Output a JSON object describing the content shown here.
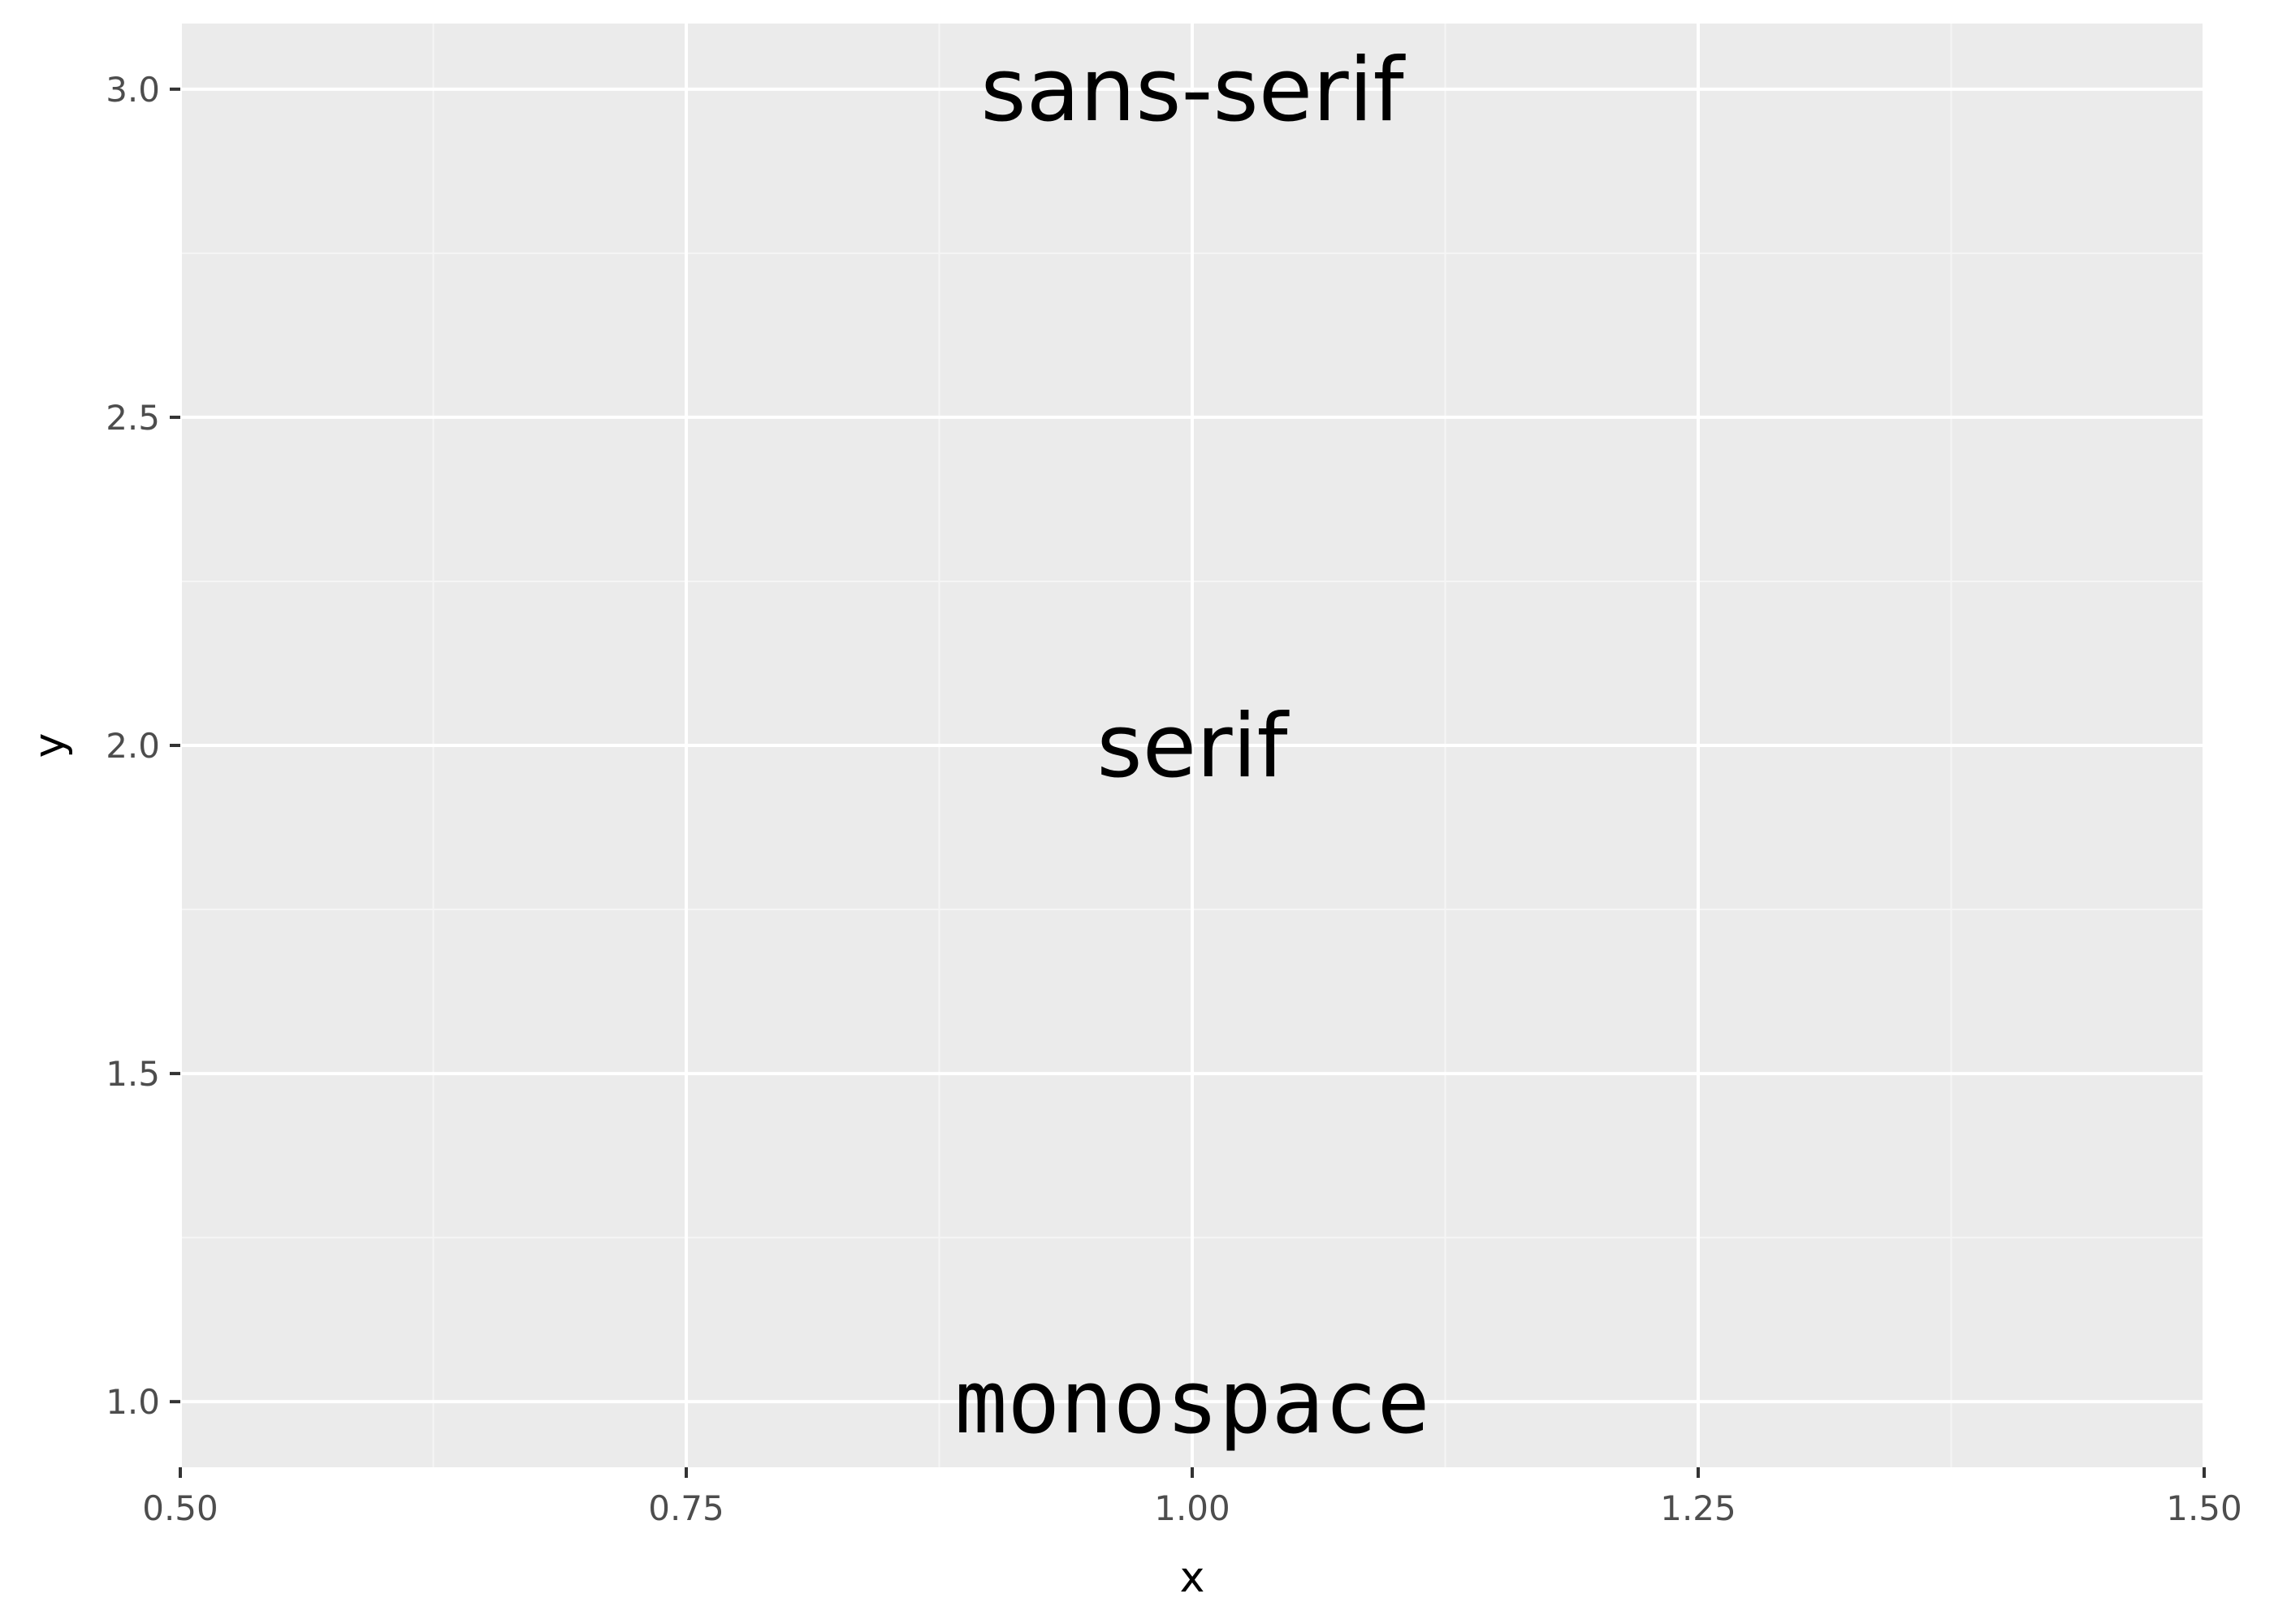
{
  "chart_data": {
    "type": "scatter",
    "title": "",
    "xlabel": "x",
    "ylabel": "y",
    "xlim": [
      0.5,
      1.5
    ],
    "ylim": [
      0.9,
      3.1
    ],
    "x_ticks": [
      0.5,
      0.75,
      1.0,
      1.25,
      1.5
    ],
    "x_tick_labels": [
      "0.50",
      "0.75",
      "1.00",
      "1.25",
      "1.50"
    ],
    "y_ticks": [
      1.0,
      1.5,
      2.0,
      2.5,
      3.0
    ],
    "y_tick_labels": [
      "1.0",
      "1.5",
      "2.0",
      "2.5",
      "3.0"
    ],
    "grid": true,
    "points": [
      {
        "x": 1.0,
        "y": 3.0,
        "label": "sans-serif",
        "family": "sans"
      },
      {
        "x": 1.0,
        "y": 2.0,
        "label": "serif",
        "family": "serif"
      },
      {
        "x": 1.0,
        "y": 1.0,
        "label": "monospace",
        "family": "mono"
      }
    ],
    "colors": {
      "panel": "#ebebeb",
      "grid_major": "#ffffff",
      "grid_minor": "#f5f5f5",
      "text": "#000000",
      "tick_text": "#4d4d4d",
      "tick_mark": "#333333"
    }
  }
}
